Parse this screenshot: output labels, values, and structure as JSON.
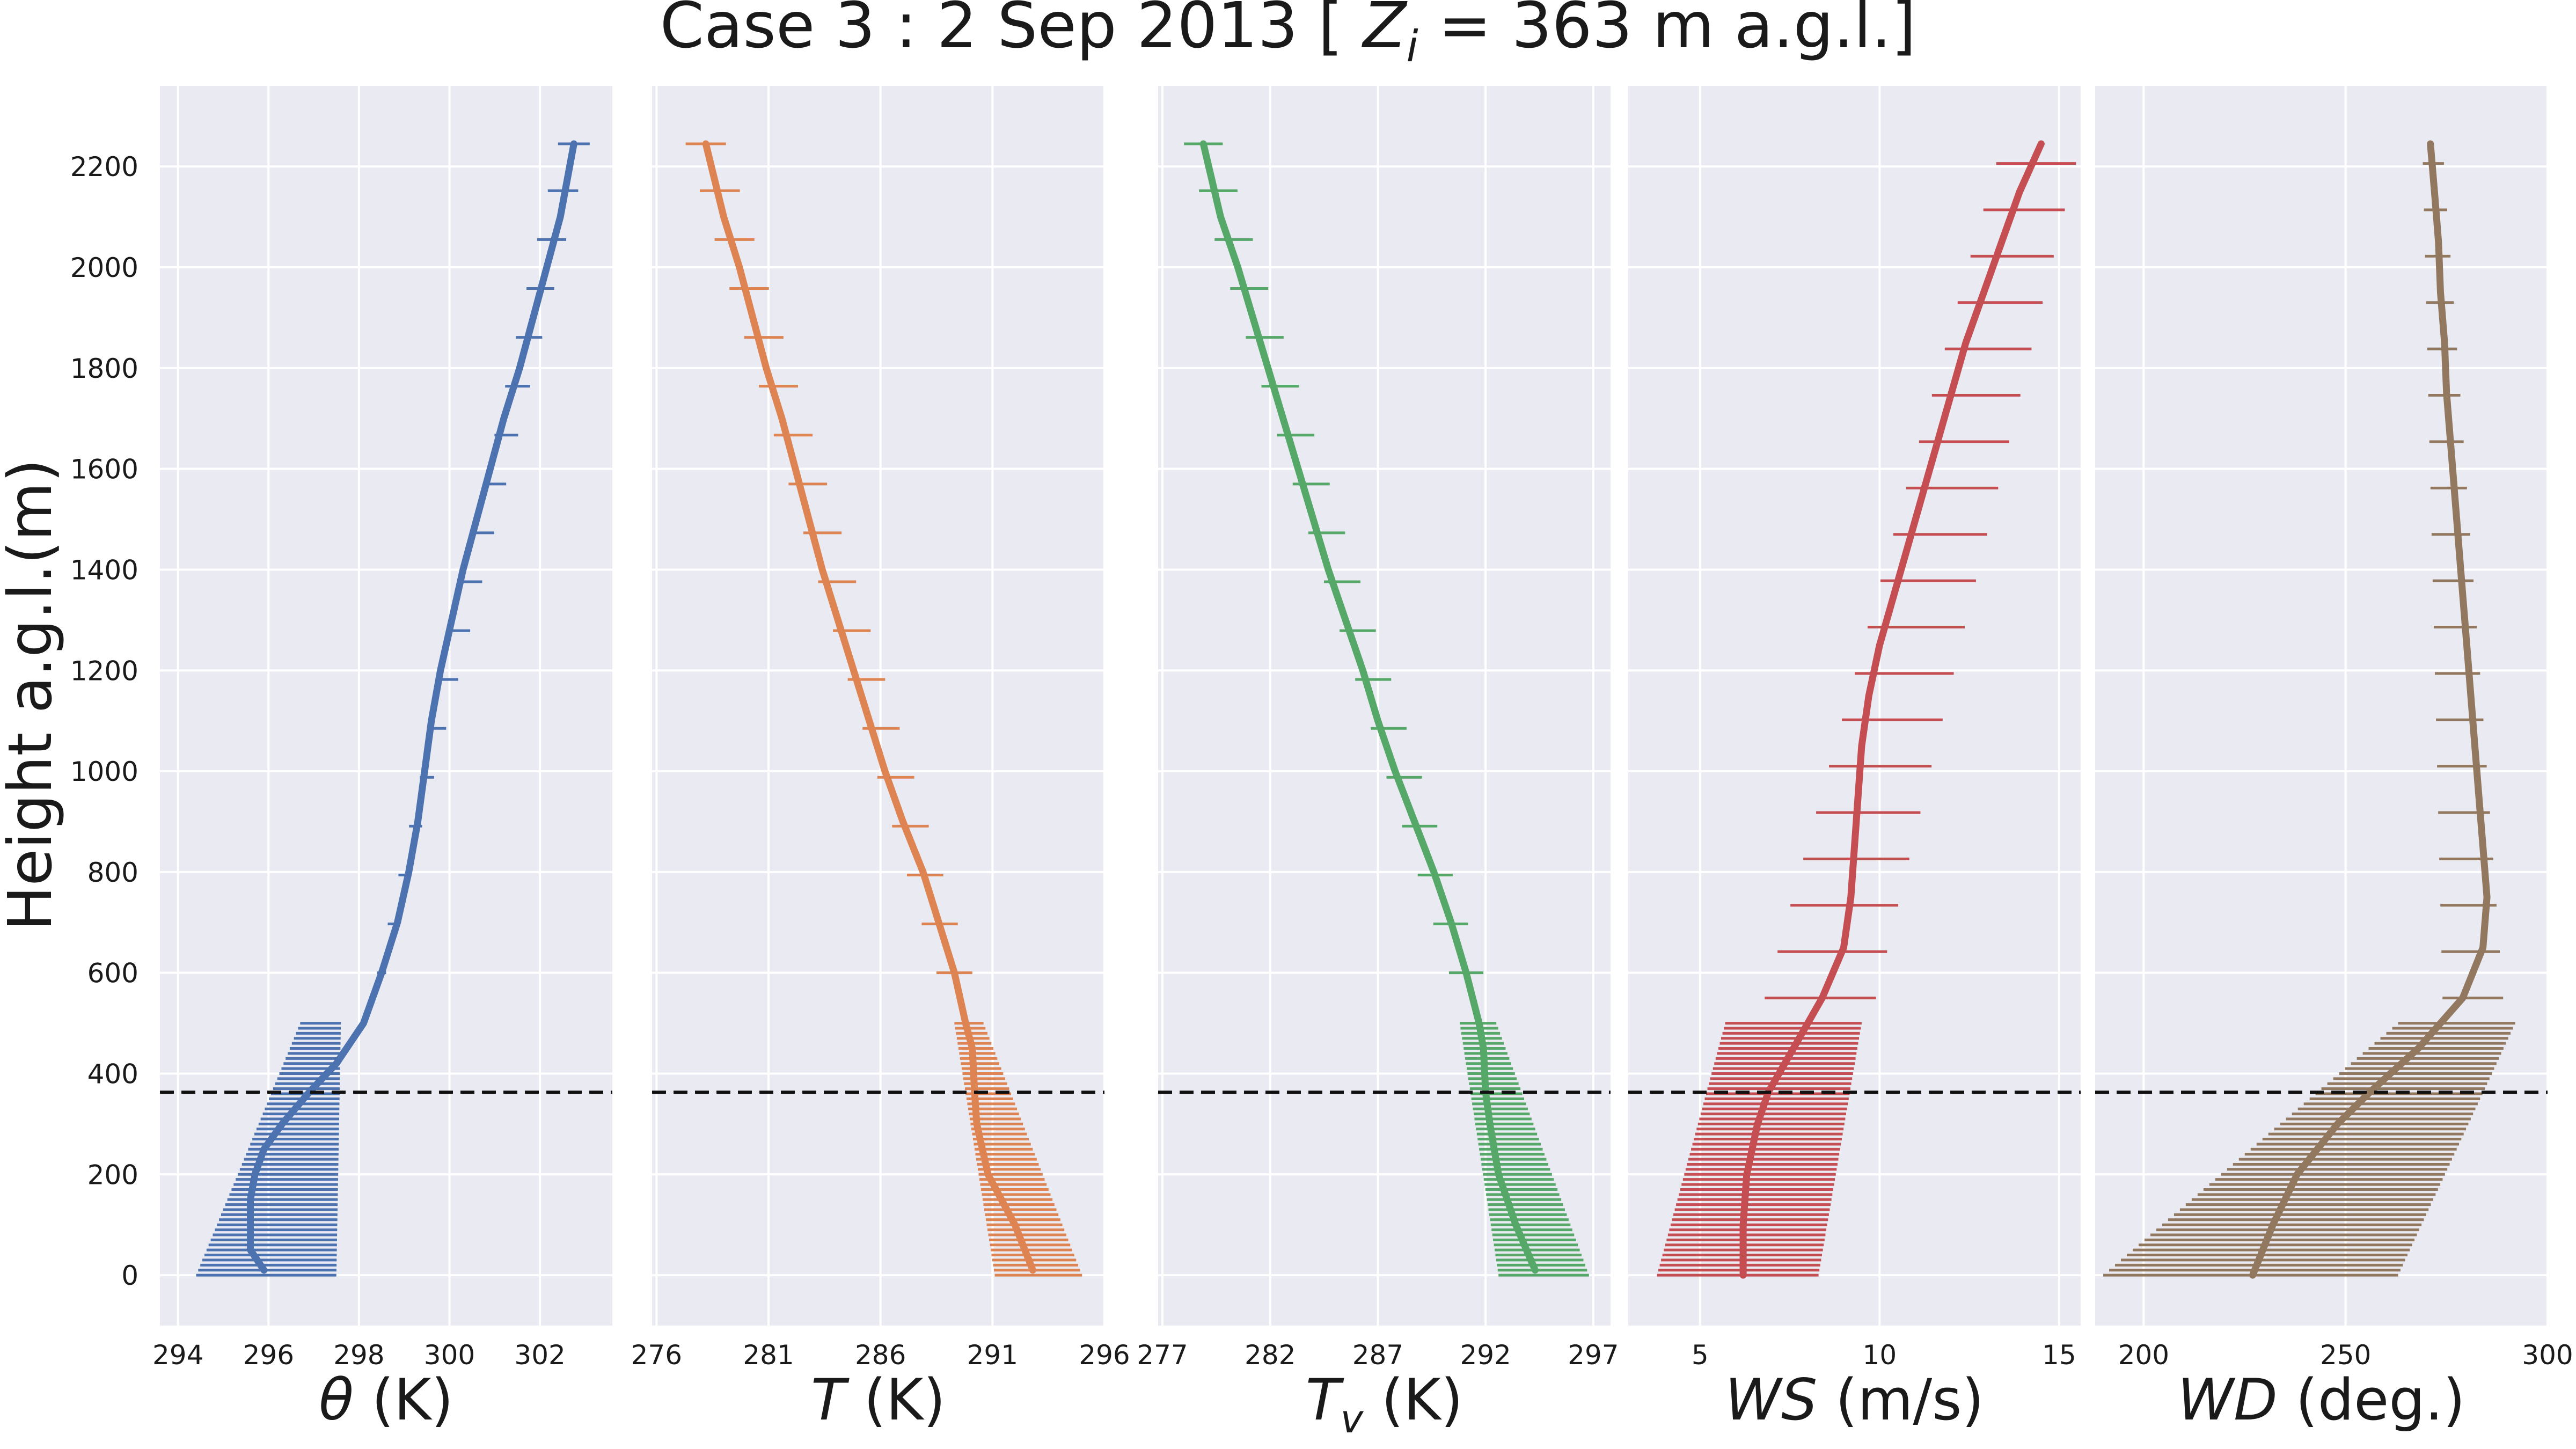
{
  "figure": {
    "title_prefix": "Case 3 : 2 Sep 2013 [ ",
    "title_zi_symbol": "Z",
    "title_zi_subscript": "i",
    "title_suffix": " =  363 m a.g.l.]",
    "ylabel": "Height a.g.l.(m)",
    "zi_height_m": 363,
    "style": {
      "background": "#eaeaf2",
      "grid_color": "#ffffff",
      "zi_line_color": "#111111"
    }
  },
  "chart_data": [
    {
      "type": "line",
      "id": "theta",
      "xlabel_symbol": "θ",
      "xlabel_unit": " (K)",
      "xlim": [
        293.6,
        303.6
      ],
      "xticks": [
        294,
        296,
        298,
        300,
        302
      ],
      "ylim": [
        -100,
        2360
      ],
      "yticks": [
        0,
        200,
        400,
        600,
        800,
        1000,
        1200,
        1400,
        1600,
        1800,
        2000,
        2200
      ],
      "color": "#4c72b0",
      "profile": {
        "y": [
          10,
          50,
          100,
          150,
          200,
          250,
          300,
          363,
          420,
          500,
          600,
          700,
          800,
          900,
          1000,
          1100,
          1200,
          1300,
          1400,
          1500,
          1600,
          1700,
          1800,
          1900,
          2000,
          2100,
          2245
        ],
        "x": [
          295.9,
          295.6,
          295.6,
          295.6,
          295.7,
          295.9,
          296.3,
          296.9,
          297.5,
          298.1,
          298.5,
          298.85,
          299.1,
          299.3,
          299.45,
          299.6,
          299.8,
          300.05,
          300.3,
          300.6,
          300.9,
          301.2,
          301.55,
          301.85,
          302.15,
          302.45,
          302.75
        ]
      },
      "error_bars": [
        {
          "y_start": 0,
          "y_end": 500,
          "step": 10,
          "y": [
            0,
            500
          ],
          "left": [
            294.4,
            296.7
          ],
          "right": [
            297.5,
            297.6
          ]
        },
        {
          "y_start": 600,
          "y_end": 2245,
          "step": 97,
          "y": [
            600,
            2245
          ],
          "left": [
            298.4,
            302.4
          ],
          "right": [
            298.6,
            303.1
          ]
        }
      ]
    },
    {
      "type": "line",
      "id": "temperature",
      "xlabel_symbol": "T",
      "xlabel_unit": " (K)",
      "xlim": [
        275.8,
        296.0
      ],
      "xticks": [
        276,
        281,
        286,
        291,
        296
      ],
      "ylim": [
        -100,
        2360
      ],
      "yticks": [
        0,
        200,
        400,
        600,
        800,
        1000,
        1200,
        1400,
        1600,
        1800,
        2000,
        2200
      ],
      "color": "#dd8452",
      "profile": {
        "y": [
          10,
          100,
          200,
          300,
          363,
          450,
          500,
          600,
          700,
          800,
          900,
          1000,
          1100,
          1200,
          1300,
          1400,
          1500,
          1600,
          1700,
          1800,
          1900,
          2000,
          2100,
          2245
        ],
        "x": [
          292.8,
          292.0,
          290.8,
          290.3,
          290.2,
          290.1,
          289.8,
          289.3,
          288.6,
          287.9,
          287.0,
          286.2,
          285.5,
          284.8,
          284.1,
          283.4,
          282.8,
          282.2,
          281.6,
          280.9,
          280.3,
          279.7,
          279.0,
          278.2
        ]
      },
      "error_bars": [
        {
          "y_start": 0,
          "y_end": 500,
          "step": 10,
          "y": [
            0,
            500
          ],
          "left": [
            291.1,
            289.3
          ],
          "right": [
            295.0,
            290.6
          ]
        },
        {
          "y_start": 600,
          "y_end": 2245,
          "step": 97,
          "y": [
            600,
            2245
          ],
          "left": [
            288.5,
            277.3
          ],
          "right": [
            290.1,
            279.1
          ]
        }
      ]
    },
    {
      "type": "line",
      "id": "virtual_temperature",
      "xlabel_symbol": "T",
      "xlabel_subscript": "v",
      "xlabel_unit": " (K)",
      "xlim": [
        276.8,
        297.8
      ],
      "xticks": [
        277,
        282,
        287,
        292,
        297
      ],
      "ylim": [
        -100,
        2360
      ],
      "yticks": [
        0,
        200,
        400,
        600,
        800,
        1000,
        1200,
        1400,
        1600,
        1800,
        2000,
        2200
      ],
      "color": "#55a868",
      "profile": {
        "y": [
          10,
          100,
          200,
          300,
          363,
          450,
          500,
          600,
          700,
          800,
          900,
          1000,
          1100,
          1200,
          1300,
          1400,
          1500,
          1600,
          1700,
          1800,
          1900,
          2000,
          2100,
          2245
        ],
        "x": [
          294.3,
          293.4,
          292.6,
          292.2,
          292.0,
          291.9,
          291.7,
          291.1,
          290.4,
          289.6,
          288.7,
          287.8,
          287.0,
          286.3,
          285.5,
          284.7,
          284.0,
          283.3,
          282.6,
          281.9,
          281.2,
          280.5,
          279.7,
          278.9
        ]
      },
      "error_bars": [
        {
          "y_start": 0,
          "y_end": 500,
          "step": 10,
          "y": [
            0,
            500
          ],
          "left": [
            292.6,
            290.8
          ],
          "right": [
            296.8,
            292.5
          ]
        },
        {
          "y_start": 600,
          "y_end": 2245,
          "step": 97,
          "y": [
            600,
            2245
          ],
          "left": [
            290.3,
            278.0
          ],
          "right": [
            291.9,
            279.8
          ]
        }
      ]
    },
    {
      "type": "line",
      "id": "wind_speed",
      "xlabel_symbol": "WS",
      "xlabel_unit": " (m/s)",
      "xlim": [
        3.0,
        15.6
      ],
      "xticks": [
        5,
        10,
        15
      ],
      "ylim": [
        -100,
        2360
      ],
      "yticks": [
        0,
        200,
        400,
        600,
        800,
        1000,
        1200,
        1400,
        1600,
        1800,
        2000,
        2200
      ],
      "color": "#c44e52",
      "profile": {
        "y": [
          0,
          100,
          200,
          300,
          363,
          450,
          550,
          650,
          750,
          850,
          950,
          1050,
          1150,
          1250,
          1350,
          1450,
          1550,
          1650,
          1750,
          1850,
          1950,
          2050,
          2150,
          2245
        ],
        "x": [
          6.2,
          6.2,
          6.3,
          6.6,
          6.9,
          7.6,
          8.4,
          9.0,
          9.2,
          9.3,
          9.4,
          9.5,
          9.7,
          10.0,
          10.4,
          10.8,
          11.2,
          11.6,
          12.0,
          12.4,
          12.9,
          13.4,
          13.9,
          14.5
        ]
      },
      "error_bars": [
        {
          "y_start": 0,
          "y_end": 500,
          "step": 10,
          "y": [
            0,
            500
          ],
          "left": [
            3.8,
            5.7
          ],
          "right": [
            8.3,
            9.5
          ]
        },
        {
          "y_start": 550,
          "y_end": 2245,
          "step": 92,
          "y": [
            550,
            2245
          ],
          "left": [
            6.8,
            13.4
          ],
          "right": [
            9.9,
            15.6
          ]
        }
      ]
    },
    {
      "type": "line",
      "id": "wind_direction",
      "xlabel_symbol": "WD",
      "xlabel_unit": " (deg.)",
      "xlim": [
        188,
        300
      ],
      "xticks": [
        200,
        250,
        300
      ],
      "ylim": [
        -100,
        2360
      ],
      "yticks": [
        0,
        200,
        400,
        600,
        800,
        1000,
        1200,
        1400,
        1600,
        1800,
        2000,
        2200
      ],
      "color": "#937860",
      "profile": {
        "y": [
          0,
          100,
          200,
          300,
          363,
          450,
          550,
          650,
          750,
          850,
          950,
          1050,
          1150,
          1250,
          1350,
          1450,
          1550,
          1650,
          1750,
          1850,
          1950,
          2050,
          2150,
          2245
        ],
        "x": [
          227,
          232,
          238,
          248,
          256,
          268,
          279,
          284,
          285,
          284,
          283,
          282,
          281,
          280,
          279,
          278,
          277,
          276,
          275,
          274.5,
          273.5,
          273,
          272,
          271
        ]
      },
      "error_bars": [
        {
          "y_start": 0,
          "y_end": 500,
          "step": 10,
          "y": [
            0,
            500
          ],
          "left": [
            190,
            263
          ],
          "right": [
            263,
            292
          ]
        },
        {
          "y_start": 550,
          "y_end": 2245,
          "step": 92,
          "y": [
            550,
            2245
          ],
          "left": [
            274,
            269
          ],
          "right": [
            289,
            274
          ]
        }
      ]
    }
  ]
}
